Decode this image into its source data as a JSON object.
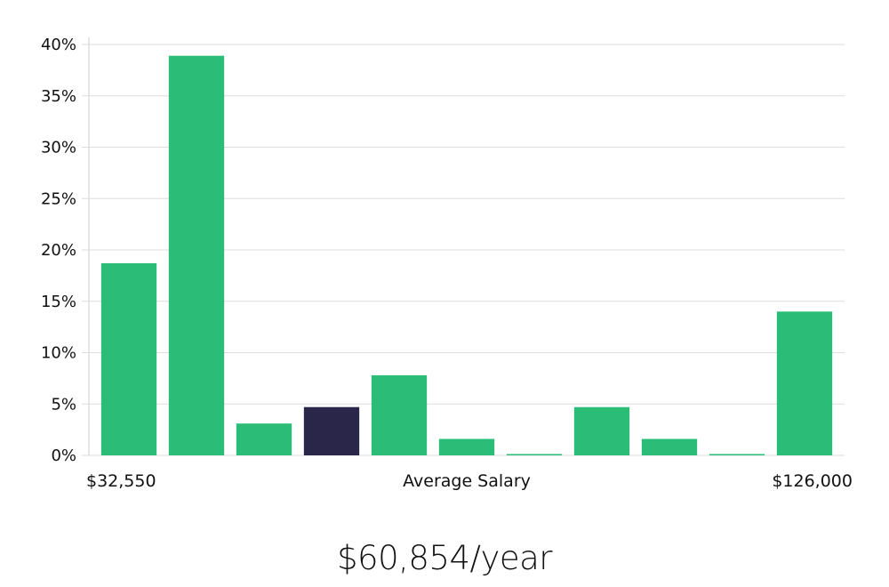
{
  "chart_data": {
    "type": "bar",
    "title": "",
    "ylabel": "",
    "xlabel": "Average Salary",
    "x_min_label": "$32,550",
    "x_max_label": "$126,000",
    "ylim": [
      0,
      40
    ],
    "y_ticks": [
      0,
      5,
      10,
      15,
      20,
      25,
      30,
      35,
      40
    ],
    "y_tick_suffix": "%",
    "grid": true,
    "values": [
      18.7,
      38.9,
      3.1,
      4.7,
      7.8,
      1.6,
      0.1,
      4.7,
      1.6,
      0.1,
      14.0
    ],
    "highlight_index": 3,
    "colors": {
      "bar": "#2bbd77",
      "highlight": "#29264a",
      "grid": "#dddddd",
      "axis": "#cccccc"
    }
  },
  "salary_label": "$60,854/year"
}
